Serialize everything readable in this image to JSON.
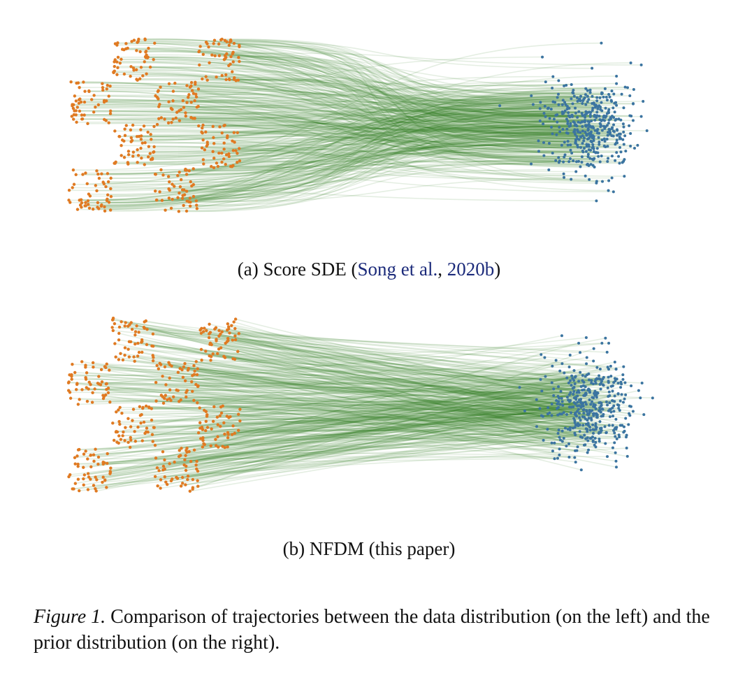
{
  "panels": [
    {
      "label": "(a)",
      "method": "Score SDE",
      "cite_open": "(",
      "cite": "Song et al., 2020b",
      "cite_sep": ", ",
      "cite_year": "2020b",
      "cite_authors": "Song et al.",
      "cite_close": ")"
    },
    {
      "label": "(b)",
      "method": "NFDM",
      "note": "(this paper)"
    }
  ],
  "figure_caption": {
    "label": "Figure 1.",
    "text": "Comparison of trajectories between the data distribution (on the left) and the prior distribution (on the right)."
  },
  "colors": {
    "data": "#e07a22",
    "prior": "#3b74a0",
    "trajectory": "#2f7d1e",
    "cite": "#1b2a7a"
  },
  "chart_data": [
    {
      "type": "scatter",
      "title": "Score SDE",
      "trajectory_shape": "curved",
      "data_distribution": "checkerboard 4x4, 8 filled cells",
      "prior_distribution": "gaussian",
      "points": 420
    },
    {
      "type": "scatter",
      "title": "NFDM",
      "trajectory_shape": "straight",
      "data_distribution": "checkerboard 4x4, 8 filled cells",
      "prior_distribution": "gaussian",
      "points": 420
    }
  ]
}
